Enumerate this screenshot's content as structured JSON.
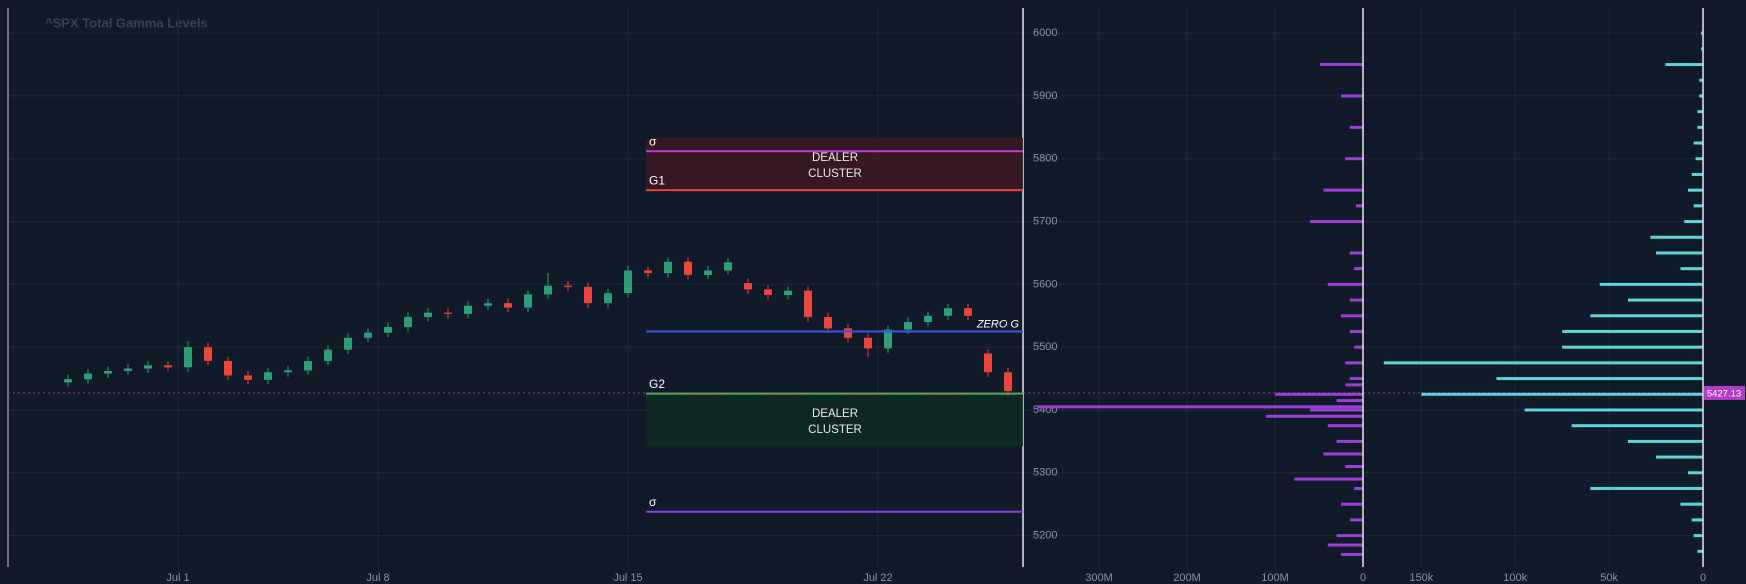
{
  "chart_data": [
    {
      "type": "candlestick",
      "title": "^SPX Total Gamma Levels",
      "x": [
        1.8,
        2.2,
        2.6,
        3.0,
        3.4,
        3.8,
        4.2,
        4.6,
        5.0,
        5.4,
        5.8,
        6.2,
        6.6,
        7.0,
        7.4,
        7.8,
        8.2,
        8.6,
        9.0,
        9.4,
        9.8,
        10.2,
        10.6,
        11.0,
        11.4,
        11.8,
        12.2,
        12.6,
        13.0,
        13.4,
        13.8,
        14.2,
        14.6,
        15.0,
        15.4,
        15.8,
        16.2,
        16.6,
        17.0,
        17.4,
        17.8,
        18.2,
        18.6,
        19.0,
        19.4,
        19.8,
        20.2,
        20.6
      ],
      "open": [
        5444,
        5449,
        5458,
        5462,
        5466,
        5471,
        5468,
        5500,
        5478,
        5455,
        5448,
        5460,
        5463,
        5478,
        5496,
        5515,
        5523,
        5532,
        5548,
        5555,
        5553,
        5566,
        5570,
        5563,
        5584,
        5598,
        5596,
        5570,
        5586,
        5622,
        5618,
        5636,
        5615,
        5622,
        5602,
        5592,
        5583,
        5590,
        5548,
        5530,
        5515,
        5498,
        5528,
        5540,
        5550,
        5562,
        5490,
        5460
      ],
      "high": [
        5456,
        5465,
        5469,
        5473,
        5478,
        5478,
        5510,
        5507,
        5485,
        5462,
        5467,
        5470,
        5485,
        5503,
        5522,
        5530,
        5539,
        5555,
        5562,
        5562,
        5573,
        5577,
        5577,
        5591,
        5618,
        5605,
        5603,
        5593,
        5629,
        5629,
        5643,
        5643,
        5629,
        5642,
        5609,
        5599,
        5597,
        5597,
        5555,
        5537,
        5522,
        5535,
        5547,
        5557,
        5569,
        5569,
        5497,
        5467
      ],
      "low": [
        5437,
        5442,
        5451,
        5455,
        5459,
        5461,
        5461,
        5471,
        5448,
        5441,
        5441,
        5453,
        5456,
        5471,
        5489,
        5508,
        5516,
        5525,
        5541,
        5546,
        5546,
        5559,
        5556,
        5556,
        5577,
        5589,
        5563,
        5563,
        5579,
        5611,
        5611,
        5608,
        5608,
        5615,
        5585,
        5576,
        5576,
        5541,
        5523,
        5508,
        5485,
        5491,
        5521,
        5533,
        5543,
        5543,
        5453,
        5423
      ],
      "close": [
        5449,
        5458,
        5462,
        5466,
        5471,
        5468,
        5500,
        5478,
        5455,
        5448,
        5460,
        5463,
        5478,
        5496,
        5515,
        5523,
        5532,
        5548,
        5555,
        5553,
        5566,
        5570,
        5563,
        5584,
        5598,
        5596,
        5570,
        5586,
        5622,
        5618,
        5636,
        5615,
        5622,
        5635,
        5592,
        5583,
        5590,
        5548,
        5530,
        5515,
        5498,
        5528,
        5540,
        5550,
        5562,
        5550,
        5460,
        5430
      ],
      "up_color": "#2f9e78",
      "down_color": "#e8463c",
      "xlim": [
        0.6,
        20.9
      ],
      "xticks": [
        {
          "value": 4,
          "label": "Jul 1"
        },
        {
          "value": 8,
          "label": "Jul 8"
        },
        {
          "value": 13,
          "label": "Jul 15"
        },
        {
          "value": 18,
          "label": "Jul 22"
        }
      ],
      "ylim": [
        5150,
        6040
      ],
      "yticks": [
        5200,
        5300,
        5400,
        5500,
        5600,
        5700,
        5800,
        5900,
        6000
      ],
      "grid": true,
      "clusters": [
        {
          "label_lines": [
            "DEALER",
            "CLUSTER"
          ],
          "top": 5833,
          "bottom": 5750,
          "color": "#3a1822"
        },
        {
          "label_lines": [
            "DEALER",
            "CLUSTER"
          ],
          "top": 5426,
          "bottom": 5342,
          "color": "#102a22"
        }
      ],
      "levels": [
        {
          "label": "σ",
          "value": 5812,
          "color": "#c03fd8",
          "label_side": "left"
        },
        {
          "label": "G1",
          "value": 5750,
          "color": "#e8423a",
          "label_side": "left"
        },
        {
          "label": "ZERO G",
          "value": 5525,
          "color": "#3a55e0",
          "label_side": "right"
        },
        {
          "label": "G2",
          "value": 5426,
          "color": "#4fb04a",
          "label_side": "left"
        },
        {
          "label": "σ",
          "value": 5238,
          "color": "#8a3fe0",
          "label_side": "left"
        }
      ],
      "last_price": {
        "value": 5427.13,
        "label": "5427.13",
        "color": "#b03cc8"
      }
    },
    {
      "type": "hbar",
      "strikes": [
        5170,
        5185,
        5200,
        5225,
        5250,
        5275,
        5290,
        5310,
        5330,
        5350,
        5375,
        5390,
        5400,
        5405,
        5415,
        5425,
        5440,
        5450,
        5475,
        5500,
        5525,
        5550,
        5575,
        5600,
        5625,
        5650,
        5700,
        5725,
        5750,
        5800,
        5850,
        5900,
        5950
      ],
      "values": [
        25000000,
        40000000,
        30000000,
        15000000,
        25000000,
        10000000,
        78000000,
        20000000,
        45000000,
        30000000,
        40000000,
        110000000,
        60000000,
        370000000,
        30000000,
        100000000,
        20000000,
        15000000,
        20000000,
        10000000,
        15000000,
        25000000,
        15000000,
        40000000,
        10000000,
        15000000,
        60000000,
        8000000,
        45000000,
        20000000,
        15000000,
        25000000,
        49000000
      ],
      "color": "#9b3fd6",
      "xlim": [
        0,
        375000000
      ],
      "xticks": [
        0,
        {
          "value": 100000000,
          "label": "100M"
        },
        {
          "value": 200000000,
          "label": "200M"
        },
        {
          "value": 300000000,
          "label": "300M"
        }
      ]
    },
    {
      "type": "hbar",
      "strikes": [
        5175,
        5200,
        5225,
        5250,
        5275,
        5300,
        5325,
        5350,
        5375,
        5400,
        5425,
        5450,
        5475,
        5500,
        5525,
        5550,
        5575,
        5600,
        5625,
        5650,
        5675,
        5700,
        5725,
        5750,
        5775,
        5800,
        5825,
        5850,
        5875,
        5900,
        5925,
        5950,
        5975,
        6000
      ],
      "values": [
        3000,
        5000,
        6000,
        12000,
        60000,
        8000,
        25000,
        40000,
        70000,
        95000,
        150000,
        110000,
        170000,
        75000,
        75000,
        60000,
        40000,
        55000,
        12000,
        25000,
        28000,
        10000,
        5000,
        8000,
        6000,
        4000,
        5000,
        3000,
        3000,
        2000,
        2000,
        20000,
        1000,
        1000
      ],
      "color": "#5fd3dc",
      "xlim": [
        0,
        180000
      ],
      "xticks": [
        0,
        {
          "value": 50000,
          "label": "50k"
        },
        {
          "value": 100000,
          "label": "100k"
        },
        {
          "value": 150000,
          "label": "150k"
        }
      ]
    }
  ]
}
